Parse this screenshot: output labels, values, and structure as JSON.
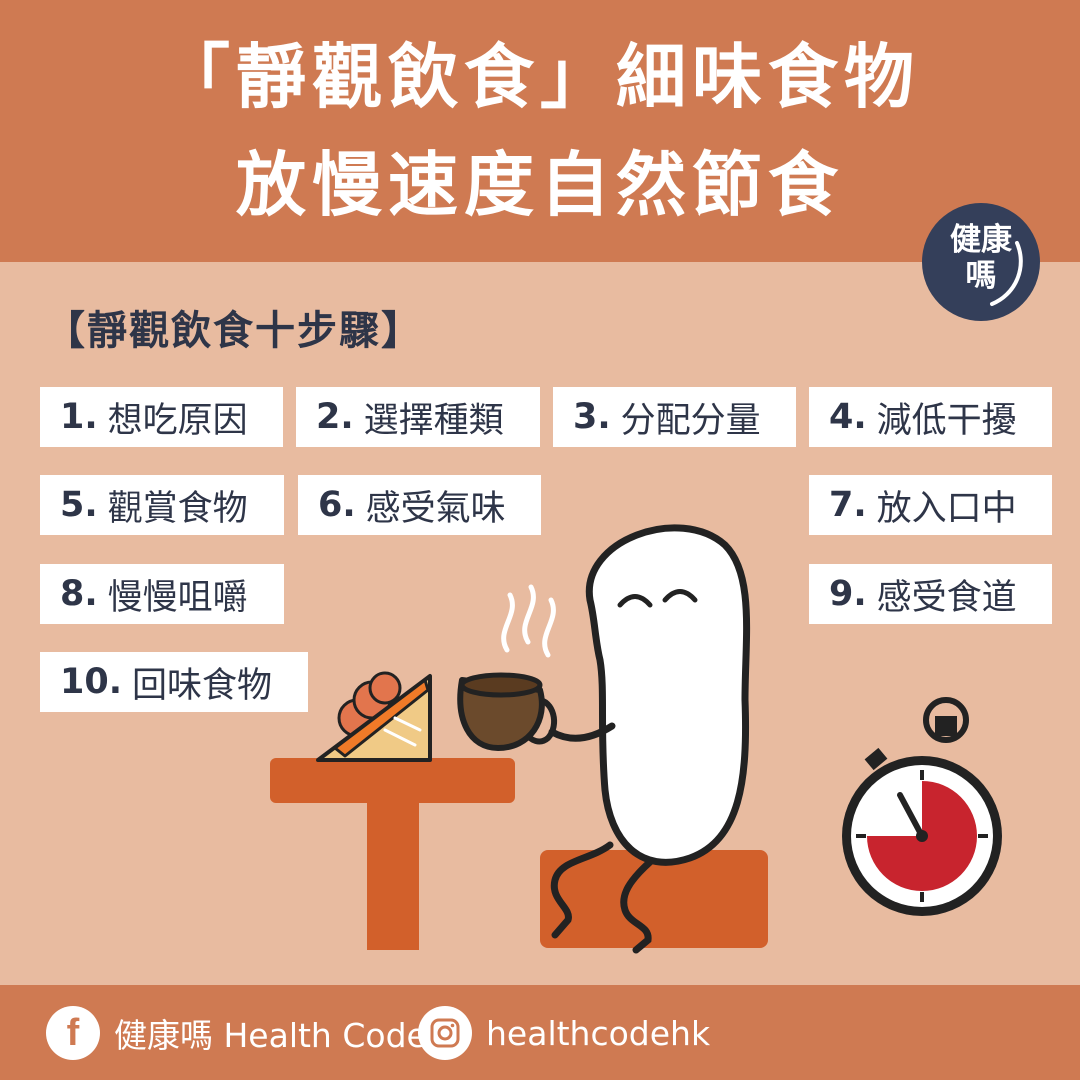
{
  "header": {
    "title_line1": "「靜觀飲食」細味食物",
    "title_line2": "放慢速度自然節食"
  },
  "badge": {
    "line1": "健康",
    "line2": "嗎"
  },
  "section_heading": "【靜觀飲食十步驟】",
  "steps": [
    {
      "num": "1.",
      "label": "想吃原因"
    },
    {
      "num": "2.",
      "label": "選擇種類"
    },
    {
      "num": "3.",
      "label": "分配分量"
    },
    {
      "num": "4.",
      "label": "減低干擾"
    },
    {
      "num": "5.",
      "label": "觀賞食物"
    },
    {
      "num": "6.",
      "label": "感受氣味"
    },
    {
      "num": "7.",
      "label": "放入口中"
    },
    {
      "num": "8.",
      "label": "慢慢咀嚼"
    },
    {
      "num": "9.",
      "label": "感受食道"
    },
    {
      "num": "10.",
      "label": "回味食物"
    }
  ],
  "footer": {
    "facebook_label": "健康嗎 Health Code",
    "instagram_label": "healthcodehk",
    "facebook_icon": "facebook-icon",
    "instagram_icon": "instagram-icon"
  },
  "colors": {
    "header_bg": "#cf7a52",
    "page_bg": "#e8bba0",
    "text_dark": "#2e3548",
    "accent_orange": "#d2602b",
    "timer_red": "#c8242e"
  }
}
